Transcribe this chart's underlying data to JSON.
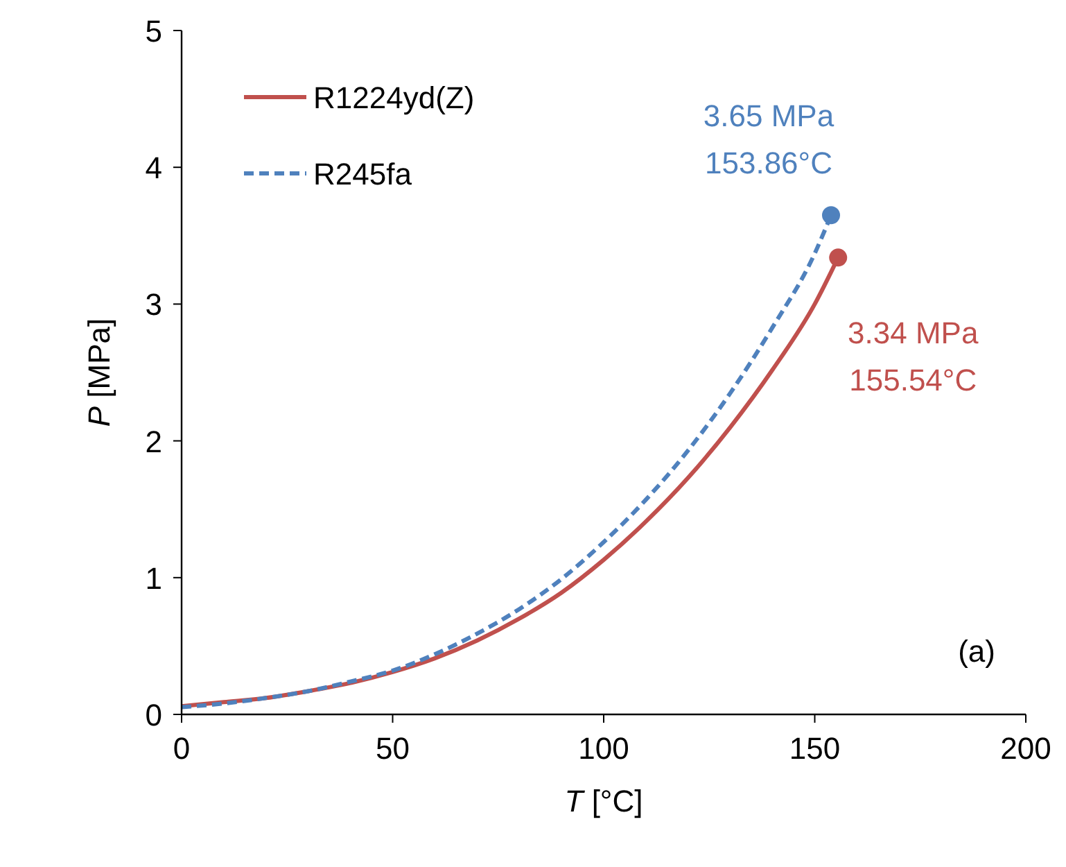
{
  "chart_data": {
    "type": "line",
    "xlabel": "T [°C]",
    "ylabel": "P [MPa]",
    "xlim": [
      0,
      200
    ],
    "xticks": [
      0,
      50,
      100,
      150,
      200
    ],
    "ylim": [
      0,
      5
    ],
    "yticks": [
      0,
      1,
      2,
      3,
      4,
      5
    ],
    "grid": false,
    "legend": "top left",
    "marker": "none",
    "series": [
      {
        "name": "R1224yd(Z)",
        "color": "#c0504d",
        "line_style": "solid",
        "x": [
          0,
          10,
          20,
          30,
          40,
          50,
          60,
          70,
          80,
          90,
          100,
          110,
          120,
          130,
          140,
          150,
          155.54
        ],
        "values": [
          0.06,
          0.09,
          0.12,
          0.17,
          0.23,
          0.31,
          0.41,
          0.54,
          0.7,
          0.89,
          1.13,
          1.41,
          1.73,
          2.1,
          2.52,
          3.0,
          3.34
        ]
      },
      {
        "name": "R245fa",
        "color": "#4f81bd",
        "line_style": "dashed",
        "x": [
          0,
          10,
          20,
          30,
          40,
          50,
          60,
          70,
          80,
          90,
          100,
          110,
          120,
          130,
          140,
          150,
          153.86
        ],
        "values": [
          0.053,
          0.08,
          0.12,
          0.17,
          0.24,
          0.32,
          0.44,
          0.59,
          0.77,
          0.99,
          1.26,
          1.57,
          1.93,
          2.35,
          2.83,
          3.37,
          3.65
        ]
      },
      {
        "type": "scatter",
        "color": "#c0504d",
        "marker": "circle",
        "x": [
          155.54
        ],
        "values": [
          3.34
        ]
      },
      {
        "type": "scatter",
        "color": "#4f81bd",
        "marker": "circle",
        "x": [
          153.86
        ],
        "values": [
          3.65
        ]
      }
    ],
    "annotations": [
      {
        "text": "3.65 MPa\n153.86°C",
        "x": 153.86,
        "y": 3.65
      },
      {
        "text": "3.34 MPa\n155.54°C",
        "x": 155.54,
        "y": 3.34
      },
      "(a)"
    ]
  }
}
